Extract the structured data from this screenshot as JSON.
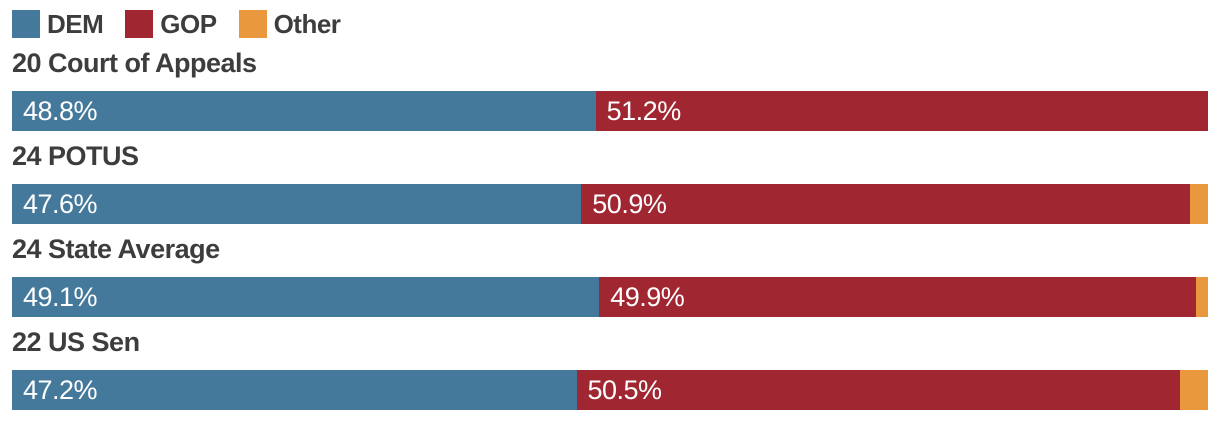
{
  "legend": {
    "items": [
      {
        "label": "DEM",
        "color": "#45799C"
      },
      {
        "label": "GOP",
        "color": "#A02632"
      },
      {
        "label": "Other",
        "color": "#E9983E"
      }
    ]
  },
  "colors": {
    "dem": "#45799C",
    "gop": "#A02632",
    "other": "#E9983E",
    "title_text": "#3D3D3D",
    "bar_label_text": "#FFFFFF",
    "background": "#FFFFFF"
  },
  "chart_data": {
    "type": "bar",
    "orientation": "horizontal_stacked",
    "title": "",
    "xlabel": "",
    "ylabel": "",
    "xlim": [
      0,
      100
    ],
    "value_unit": "%",
    "grid": false,
    "legend_position": "top-left",
    "categories": [
      "20 Court of Appeals",
      "24 POTUS",
      "24 State Average",
      "22 US Sen"
    ],
    "series": [
      {
        "name": "DEM",
        "color": "#45799C",
        "values": [
          48.8,
          47.6,
          49.1,
          47.2
        ],
        "labels": [
          "48.8%",
          "47.6%",
          "49.1%",
          "47.2%"
        ]
      },
      {
        "name": "GOP",
        "color": "#A02632",
        "values": [
          51.2,
          50.9,
          49.9,
          50.5
        ],
        "labels": [
          "51.2%",
          "50.9%",
          "49.9%",
          "50.5%"
        ]
      },
      {
        "name": "Other",
        "color": "#E9983E",
        "values": [
          0,
          1.5,
          1.0,
          2.3
        ],
        "labels": [
          "",
          "",
          "",
          ""
        ]
      }
    ],
    "bar_labels_shown_for": [
      "DEM",
      "GOP"
    ]
  }
}
